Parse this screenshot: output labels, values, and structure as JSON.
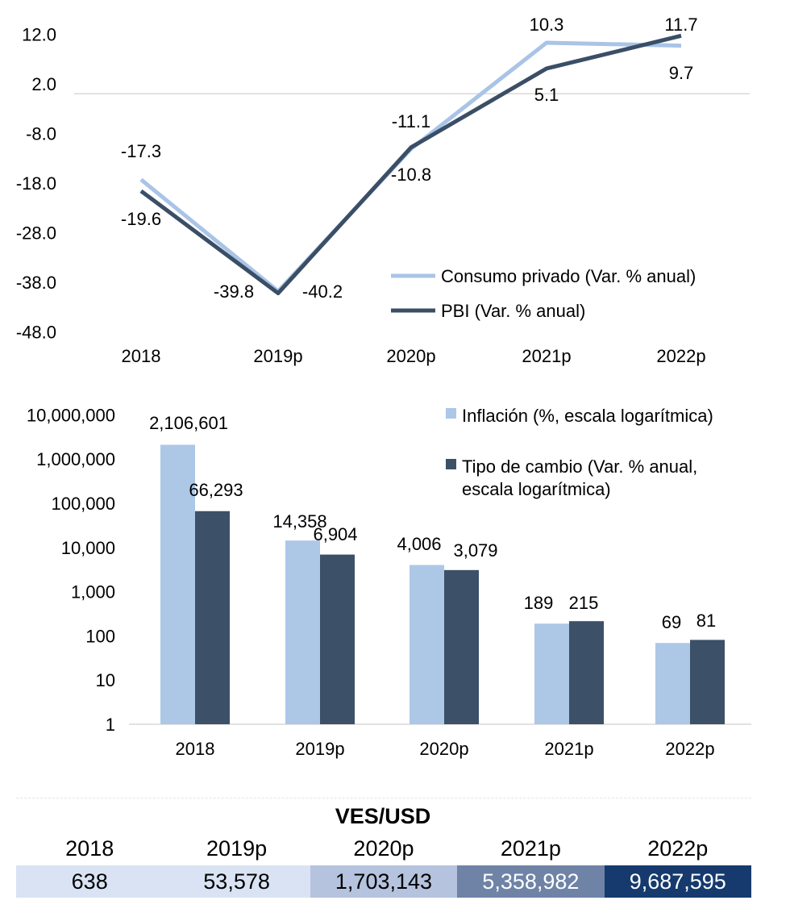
{
  "chart_data": [
    {
      "type": "line",
      "categories": [
        "2018",
        "2019p",
        "2020p",
        "2021p",
        "2022p"
      ],
      "y_ticks": [
        "12.0",
        "2.0",
        "-8.0",
        "-18.0",
        "-28.0",
        "-38.0",
        "-48.0"
      ],
      "ylim": [
        -48,
        12
      ],
      "series": [
        {
          "name": "Consumo privado (Var. % anual)",
          "values": [
            -17.3,
            -39.8,
            -11.1,
            10.3,
            9.7
          ],
          "labels": [
            "-17.3",
            "-39.8",
            "-11.1",
            "10.3",
            "9.7"
          ],
          "color": "#a9c4e6"
        },
        {
          "name": "PBI (Var. % anual)",
          "values": [
            -19.6,
            -40.2,
            -10.8,
            5.1,
            11.7
          ],
          "labels": [
            "-19.6",
            "-40.2",
            "-10.8",
            "5.1",
            "11.7"
          ],
          "color": "#3a4e66"
        }
      ]
    },
    {
      "type": "bar",
      "scale": "log",
      "categories": [
        "2018",
        "2019p",
        "2020p",
        "2021p",
        "2022p"
      ],
      "y_ticks": [
        "10,000,000",
        "1,000,000",
        "100,000",
        "10,000",
        "1,000",
        "100",
        "10",
        "1"
      ],
      "ylim": [
        1,
        10000000
      ],
      "series": [
        {
          "name": "Inflación (%, escala logarítmica)",
          "values": [
            2106601,
            14358,
            4006,
            189,
            69
          ],
          "labels": [
            "2,106,601",
            "14,358",
            "4,006",
            "189",
            "69"
          ],
          "color": "#adc7e7"
        },
        {
          "name": "Tipo de cambio  (Var. % anual,",
          "name_line2": "escala logarítmica)",
          "values": [
            66293,
            6904,
            3079,
            215,
            81
          ],
          "labels": [
            "66,293",
            "6,904",
            "3,079",
            "215",
            "81"
          ],
          "color": "#3c5068"
        }
      ]
    },
    {
      "type": "table",
      "title": "VES/USD",
      "columns": [
        "2018",
        "2019p",
        "2020p",
        "2021p",
        "2022p"
      ],
      "values": [
        "638",
        "53,578",
        "1,703,143",
        "5,358,982",
        "9,687,595"
      ],
      "cell_colors": [
        "#d9e3f3",
        "#d9e3f3",
        "#b5c3de",
        "#6e83a6",
        "#163a6d"
      ],
      "text_colors": [
        "#000000",
        "#000000",
        "#000000",
        "#ffffff",
        "#ffffff"
      ]
    }
  ]
}
